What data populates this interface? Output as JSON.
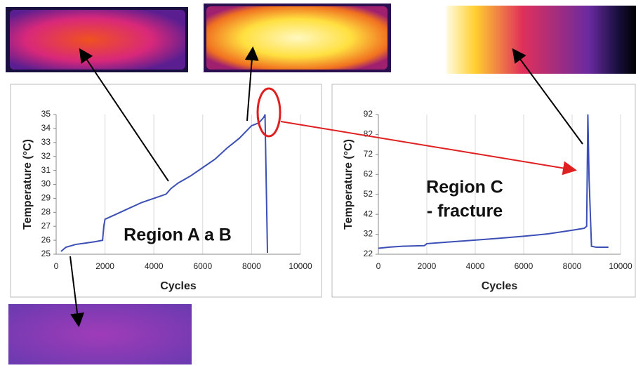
{
  "chart_data": [
    {
      "type": "line",
      "y_label": "Temperature (°C)",
      "x_label": "Cycles",
      "annotation": [
        "Region A a B"
      ],
      "color": "#3b4fb5",
      "grid": true,
      "x": [
        200,
        400,
        800,
        1200,
        1600,
        1900,
        1950,
        2000,
        2500,
        3000,
        3500,
        4000,
        4500,
        4700,
        5000,
        5500,
        6000,
        6500,
        7000,
        7500,
        8000,
        8300,
        8500,
        8550,
        8600,
        8650
      ],
      "values": [
        25.2,
        25.5,
        25.7,
        25.8,
        25.9,
        26.0,
        27.0,
        27.5,
        27.9,
        28.3,
        28.7,
        29.0,
        29.3,
        29.7,
        30.1,
        30.6,
        31.2,
        31.8,
        32.6,
        33.3,
        34.2,
        34.4,
        34.8,
        35.0,
        30,
        25.1
      ],
      "xlim": [
        0,
        10000
      ],
      "xticks": [
        0,
        2000,
        4000,
        6000,
        8000,
        10000
      ],
      "ylim": [
        25,
        35
      ],
      "yticks": [
        25,
        26,
        27,
        28,
        29,
        30,
        31,
        32,
        33,
        34,
        35
      ]
    },
    {
      "type": "line",
      "y_label": "Temperature (°C)",
      "x_label": "Cycles",
      "annotation": [
        "Region C",
        "- fracture"
      ],
      "color": "#3b4fb5",
      "grid": true,
      "x": [
        0,
        500,
        1000,
        1900,
        2000,
        3000,
        4000,
        5000,
        6000,
        7000,
        8000,
        8500,
        8600,
        8650,
        8700,
        8800,
        9000,
        9500
      ],
      "values": [
        25,
        25.6,
        26,
        26.3,
        27.3,
        28.2,
        29.1,
        30,
        31,
        32.2,
        34,
        35,
        36,
        92,
        60,
        26,
        25.5,
        25.5
      ],
      "xlim": [
        0,
        10000
      ],
      "xticks": [
        0,
        2000,
        4000,
        6000,
        8000,
        10000
      ],
      "ylim": [
        22,
        92
      ],
      "yticks": [
        22,
        32,
        42,
        52,
        62,
        72,
        82,
        92
      ]
    }
  ]
}
